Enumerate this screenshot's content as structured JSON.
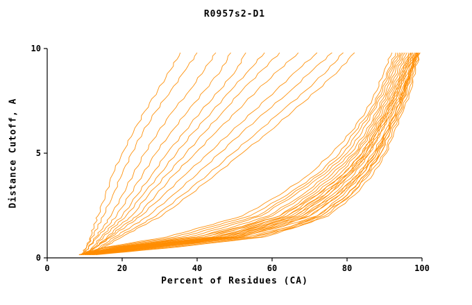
{
  "chart_data": {
    "type": "line",
    "title": "R0957s2-D1",
    "xlabel": "Percent of Residues (CA)",
    "ylabel": "Distance Cutoff, A",
    "xlim": [
      0,
      100
    ],
    "ylim": [
      0,
      10
    ],
    "xticks": [
      0,
      20,
      40,
      60,
      80,
      100
    ],
    "yticks": [
      0,
      5,
      10
    ],
    "grid": false,
    "legend": "none",
    "color": "#ff8c00",
    "axis_color": "#000000",
    "y_levels": [
      0.15,
      0.5,
      1,
      1.5,
      2,
      3,
      4,
      5,
      6,
      7,
      8,
      9,
      9.8
    ],
    "series": [
      {
        "x": [
          9.5,
          10.5,
          11.5,
          12.5,
          13.5,
          15.5,
          17.5,
          20,
          23,
          26,
          29.5,
          33,
          35.5
        ]
      },
      {
        "x": [
          9,
          10.5,
          12,
          13.5,
          15,
          17.5,
          20,
          22.5,
          25.5,
          29,
          33,
          37,
          40
        ]
      },
      {
        "x": [
          10,
          11,
          13,
          15,
          17,
          20,
          23,
          26,
          29.5,
          33.5,
          38,
          42,
          45
        ]
      },
      {
        "x": [
          9.5,
          11,
          13.5,
          16,
          18.5,
          22,
          25.5,
          29,
          33,
          37.5,
          42,
          46.5,
          49
        ]
      },
      {
        "x": [
          10,
          12,
          14.5,
          17,
          20,
          24,
          28,
          32,
          36.5,
          41,
          46,
          50.5,
          53
        ]
      },
      {
        "x": [
          10,
          12.5,
          15,
          18,
          21,
          25.5,
          30,
          34.5,
          39,
          44,
          49,
          54,
          58
        ]
      },
      {
        "x": [
          10.5,
          13,
          16,
          19,
          22.5,
          27,
          32,
          37,
          42,
          47,
          52,
          57.5,
          62
        ]
      },
      {
        "x": [
          10,
          13,
          16.5,
          20,
          24,
          29,
          34,
          39.5,
          45,
          50.5,
          56,
          62,
          67
        ]
      },
      {
        "x": [
          10,
          13,
          17,
          21,
          25,
          31,
          37,
          43,
          49,
          55,
          61,
          67,
          72
        ]
      },
      {
        "x": [
          10.5,
          14,
          18,
          22.5,
          27,
          33.5,
          40,
          46,
          52,
          58.5,
          65,
          71,
          76
        ]
      },
      {
        "x": [
          11,
          14.5,
          19,
          24,
          29,
          36,
          43,
          49.5,
          56,
          62.5,
          69,
          75,
          79
        ]
      },
      {
        "x": [
          11,
          15,
          20,
          25,
          30.5,
          38,
          45,
          52,
          59,
          65.5,
          72,
          78,
          82
        ]
      },
      {
        "x": [
          8.5,
          15,
          32,
          42,
          52,
          62,
          70,
          76,
          81,
          85,
          88,
          90,
          92
        ]
      },
      {
        "x": [
          9,
          16,
          34,
          44,
          54,
          64,
          72,
          78,
          82,
          86,
          89,
          91,
          93
        ]
      },
      {
        "x": [
          9.5,
          17,
          36,
          46,
          56,
          65,
          73,
          79,
          83,
          86.5,
          89.5,
          91.5,
          93.5
        ]
      },
      {
        "x": [
          10,
          18,
          38,
          48,
          57,
          66,
          74,
          80,
          84,
          87,
          90,
          92,
          94
        ]
      },
      {
        "x": [
          10.5,
          19,
          40,
          50,
          59,
          68,
          75,
          81,
          85,
          88,
          90.5,
          92.5,
          94.5
        ]
      },
      {
        "x": [
          11,
          20,
          42,
          52,
          60,
          69,
          76,
          82,
          85.5,
          88.5,
          91,
          93,
          95
        ]
      },
      {
        "x": [
          11.5,
          21,
          44,
          53,
          62,
          70,
          77,
          82.5,
          86,
          89,
          91.5,
          93.5,
          95.5
        ]
      },
      {
        "x": [
          12,
          22,
          45,
          55,
          63,
          71,
          78,
          83,
          86.5,
          89.5,
          92,
          94,
          96
        ]
      },
      {
        "x": [
          9,
          23,
          46,
          56,
          64,
          72,
          79,
          84,
          87,
          90,
          92.5,
          94.5,
          96.5
        ]
      },
      {
        "x": [
          9.5,
          24,
          47,
          57,
          65,
          73,
          80,
          84.5,
          87.5,
          90.5,
          93,
          95,
          97
        ]
      },
      {
        "x": [
          10,
          25,
          48,
          58,
          66,
          74,
          80.5,
          85,
          88,
          91,
          93.5,
          95.5,
          97.5
        ]
      },
      {
        "x": [
          10.5,
          26,
          49,
          59,
          67,
          75,
          81,
          85.5,
          88.5,
          91.5,
          94,
          96,
          98
        ]
      },
      {
        "x": [
          11,
          27,
          50,
          60,
          68,
          76,
          82,
          86,
          89,
          92,
          94.5,
          96.5,
          98.5
        ]
      },
      {
        "x": [
          11.5,
          28,
          51,
          61,
          69,
          77,
          83,
          87,
          90,
          92.5,
          95,
          97,
          99
        ]
      },
      {
        "x": [
          12,
          29,
          52,
          62,
          70,
          78,
          83.5,
          87.5,
          90.5,
          93,
          95.5,
          97.5,
          99
        ]
      },
      {
        "x": [
          8.5,
          20,
          45,
          57,
          66,
          75,
          81,
          86,
          89,
          92,
          94,
          96,
          98
        ]
      },
      {
        "x": [
          9,
          21,
          47,
          59,
          68,
          77,
          83,
          87.5,
          90.5,
          93,
          95,
          97,
          98.5
        ]
      },
      {
        "x": [
          9.5,
          22,
          49,
          61,
          70,
          78,
          84,
          88,
          91,
          93.5,
          95.5,
          97,
          98.7
        ]
      },
      {
        "x": [
          10,
          24,
          51,
          63,
          72,
          80,
          85,
          89,
          91.5,
          94,
          96,
          97.5,
          99
        ]
      },
      {
        "x": [
          10.5,
          26,
          53,
          65,
          73,
          81,
          86,
          90,
          92,
          94.5,
          96.5,
          98,
          99.3
        ]
      },
      {
        "x": [
          11,
          28,
          55,
          67,
          75,
          82,
          87,
          90.5,
          92.5,
          95,
          97,
          98.3,
          99.5
        ]
      },
      {
        "x": [
          8.5,
          18,
          40,
          52,
          62,
          72,
          79,
          84,
          87.5,
          90.5,
          93,
          95,
          97
        ]
      },
      {
        "x": [
          9,
          19,
          42,
          54,
          64,
          74,
          80,
          85,
          88,
          91,
          93.5,
          95.5,
          97.3
        ]
      },
      {
        "x": [
          12,
          30,
          55,
          65,
          72,
          79,
          84,
          88,
          90.5,
          93,
          95,
          96.8,
          98.3
        ]
      },
      {
        "x": [
          12.5,
          32,
          57,
          66,
          73,
          80,
          85,
          88.5,
          91,
          93.5,
          95.3,
          97,
          98.5
        ]
      },
      {
        "x": [
          13,
          34,
          58,
          67,
          74,
          81,
          85.5,
          89,
          91.5,
          94,
          95.7,
          97.3,
          98.7
        ]
      }
    ]
  }
}
